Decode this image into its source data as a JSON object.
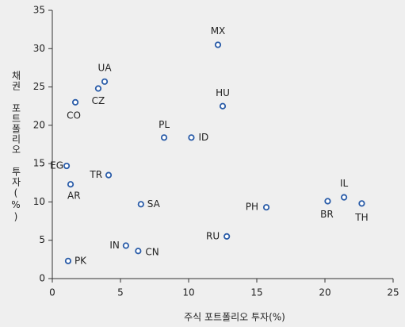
{
  "chart_data": {
    "type": "scatter",
    "x_label": "주식 포트폴리오 투자(%)",
    "y_label": "채권 포트폴리오 투자(%)",
    "point_labels": [
      "MX",
      "UA",
      "CZ",
      "CO",
      "HU",
      "PL",
      "ID",
      "EG",
      "AR",
      "TR",
      "SA",
      "PH",
      "BR",
      "IL",
      "TH",
      "RU",
      "IN",
      "CN",
      "PK"
    ],
    "x": [
      12.15,
      3.84,
      3.37,
      1.69,
      12.5,
      8.2,
      10.2,
      1.05,
      1.34,
      4.13,
      6.5,
      15.7,
      20.2,
      21.4,
      22.7,
      12.8,
      5.4,
      6.3,
      1.16
    ],
    "values": [
      30.5,
      25.7,
      24.8,
      23.0,
      22.5,
      18.4,
      18.4,
      14.7,
      12.3,
      13.5,
      9.7,
      9.3,
      10.1,
      10.6,
      9.8,
      5.5,
      4.3,
      3.6,
      2.3
    ],
    "color": "#2a5ca8",
    "xlim": [
      0,
      25
    ],
    "xticks": [
      0,
      5,
      10,
      15,
      20,
      25
    ],
    "ylim": [
      0,
      35
    ],
    "yticks": [
      0,
      5,
      10,
      15,
      20,
      25,
      30,
      35
    ]
  }
}
